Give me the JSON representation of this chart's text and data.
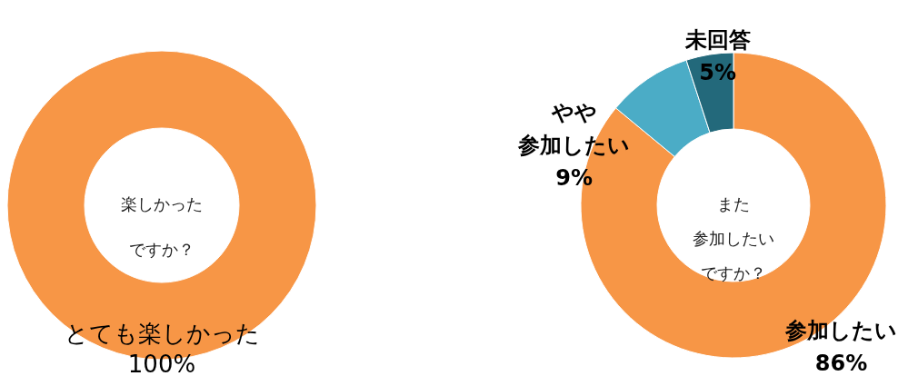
{
  "chart_data": [
    {
      "type": "donut",
      "categories": [
        "とても楽しかった"
      ],
      "values": [
        100
      ],
      "colors": [
        "#f79646"
      ],
      "value_labels": [
        "100%"
      ],
      "annotations": [
        "楽しかったですか？"
      ],
      "legend": false
    },
    {
      "type": "donut",
      "categories": [
        "参加したい",
        "やや参加したい",
        "未回答"
      ],
      "values": [
        86,
        9,
        5
      ],
      "colors": [
        "#f79646",
        "#4bacc6",
        "#23697b"
      ],
      "value_labels": [
        "86%",
        "9%",
        "5%"
      ],
      "annotations": [
        "また参加したいですか？"
      ],
      "legend": false
    }
  ]
}
